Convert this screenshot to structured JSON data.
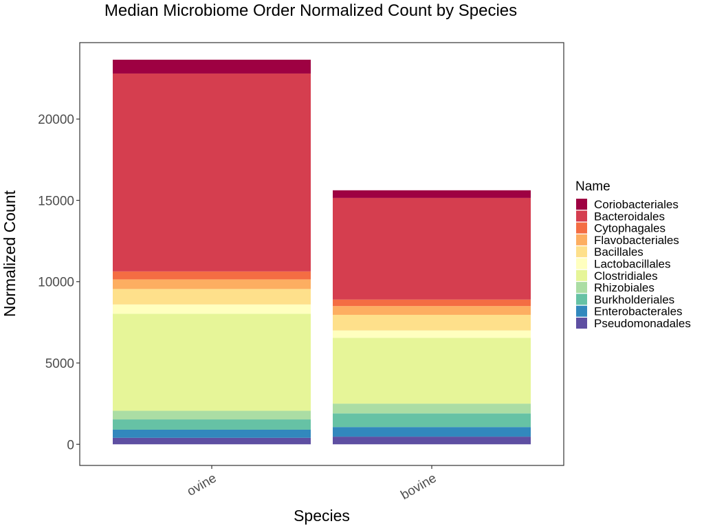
{
  "chart_data": {
    "type": "bar",
    "stacked": true,
    "title": "Median Microbiome Order Normalized Count by Species",
    "xlabel": "Species",
    "ylabel": "Normalized Count",
    "categories": [
      "ovine",
      "bovine"
    ],
    "ylim": [
      -1300,
      24700
    ],
    "yticks": [
      0,
      5000,
      10000,
      15000,
      20000
    ],
    "grid": false,
    "legend": {
      "title": "Name",
      "placement": "right"
    },
    "series": [
      {
        "name": "Pseudomonadales",
        "color": "#5e4fa2",
        "values": [
          400,
          470
        ]
      },
      {
        "name": "Enterobacterales",
        "color": "#3288bd",
        "values": [
          500,
          590
        ]
      },
      {
        "name": "Burkholderiales",
        "color": "#66c2a5",
        "values": [
          630,
          840
        ]
      },
      {
        "name": "Rhizobiales",
        "color": "#abdda4",
        "values": [
          530,
          600
        ]
      },
      {
        "name": "Clostridiales",
        "color": "#e6f598",
        "values": [
          5970,
          4050
        ]
      },
      {
        "name": "Lactobacillales",
        "color": "#ffffbf",
        "values": [
          570,
          450
        ]
      },
      {
        "name": "Bacillales",
        "color": "#fee08b",
        "values": [
          950,
          960
        ]
      },
      {
        "name": "Flavobacteriales",
        "color": "#fdae61",
        "values": [
          590,
          540
        ]
      },
      {
        "name": "Cytophagales",
        "color": "#f46d43",
        "values": [
          490,
          400
        ]
      },
      {
        "name": "Bacteroidales",
        "color": "#d53e4f",
        "values": [
          12170,
          6250
        ]
      },
      {
        "name": "Coriobacteriales",
        "color": "#9e0142",
        "values": [
          850,
          470
        ]
      }
    ]
  }
}
